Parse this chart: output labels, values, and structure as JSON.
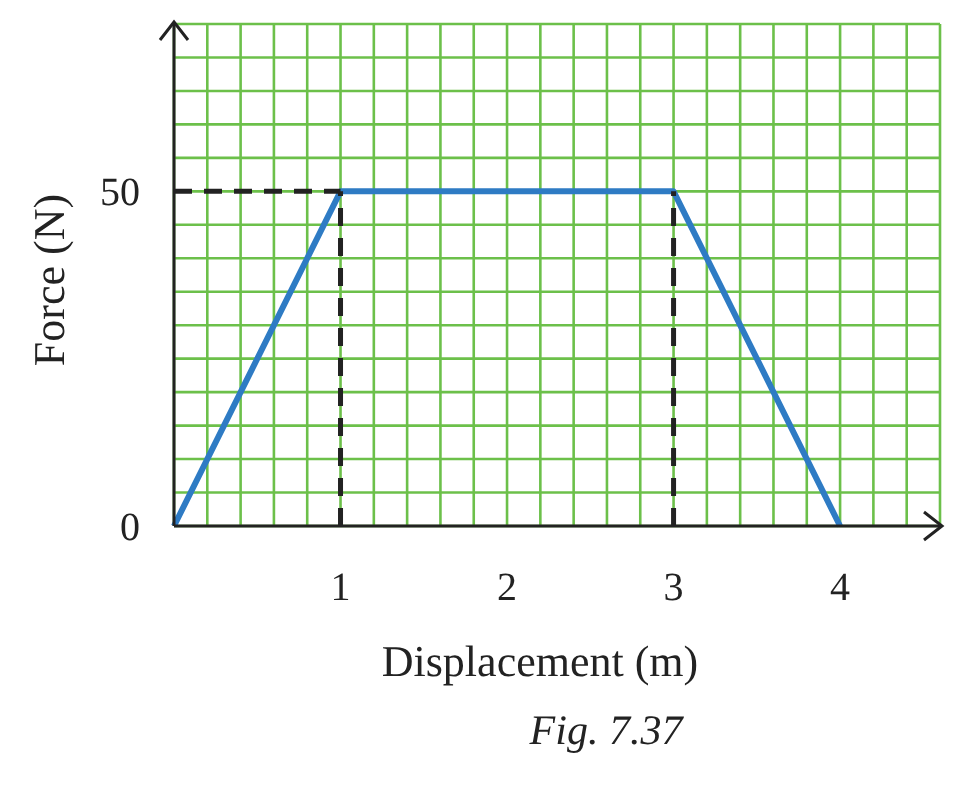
{
  "chart_data": {
    "type": "line",
    "xlabel": "Displacement (m)",
    "ylabel": "Force (N)",
    "annotations": [
      "Fig. 7.37"
    ],
    "x": [
      0,
      1,
      3,
      4
    ],
    "series": [
      {
        "color": "#2e7bc4",
        "values": [
          0,
          50,
          50,
          0
        ]
      }
    ],
    "xlim": [
      0,
      4.6
    ],
    "ylim": [
      0,
      75
    ],
    "xticks": [
      {
        "value": 0,
        "label": null
      },
      {
        "value": 0.2,
        "label": null
      },
      {
        "value": 0.4,
        "label": null
      },
      {
        "value": 0.6,
        "label": null
      },
      {
        "value": 0.8,
        "label": null
      },
      1,
      {
        "value": 1.2,
        "label": null
      },
      {
        "value": 1.4,
        "label": null
      },
      {
        "value": 1.6,
        "label": null
      },
      {
        "value": 1.8,
        "label": null
      },
      2,
      {
        "value": 2.2,
        "label": null
      },
      {
        "value": 2.4,
        "label": null
      },
      {
        "value": 2.6,
        "label": null
      },
      {
        "value": 2.8,
        "label": null
      },
      3,
      {
        "value": 3.2,
        "label": null
      },
      {
        "value": 3.4,
        "label": null
      },
      {
        "value": 3.6,
        "label": null
      },
      {
        "value": 3.8,
        "label": null
      },
      4,
      {
        "value": 4.2,
        "label": null
      },
      {
        "value": 4.4,
        "label": null
      },
      {
        "value": 4.6,
        "label": null
      }
    ],
    "yticks": [
      0,
      {
        "value": 5,
        "label": null
      },
      {
        "value": 10,
        "label": null
      },
      {
        "value": 15,
        "label": null
      },
      {
        "value": 20,
        "label": null
      },
      {
        "value": 25,
        "label": null
      },
      {
        "value": 30,
        "label": null
      },
      {
        "value": 35,
        "label": null
      },
      {
        "value": 40,
        "label": null
      },
      {
        "value": 45,
        "label": null
      },
      50,
      {
        "value": 55,
        "label": null
      },
      {
        "value": 60,
        "label": null
      },
      {
        "value": 65,
        "label": null
      },
      {
        "value": 70,
        "label": null
      },
      {
        "value": 75,
        "label": null
      }
    ],
    "grid": true,
    "marker": "none",
    "line_style": "solid",
    "ref_lines": [
      {
        "axis": "x",
        "value": 1,
        "color": "#222222",
        "line_style": "dashed"
      },
      {
        "axis": "x",
        "value": 3,
        "color": "#222222",
        "line_style": "dashed"
      },
      {
        "axis": "y",
        "value": 50,
        "color": "#222222",
        "line_style": "dashed"
      }
    ]
  }
}
